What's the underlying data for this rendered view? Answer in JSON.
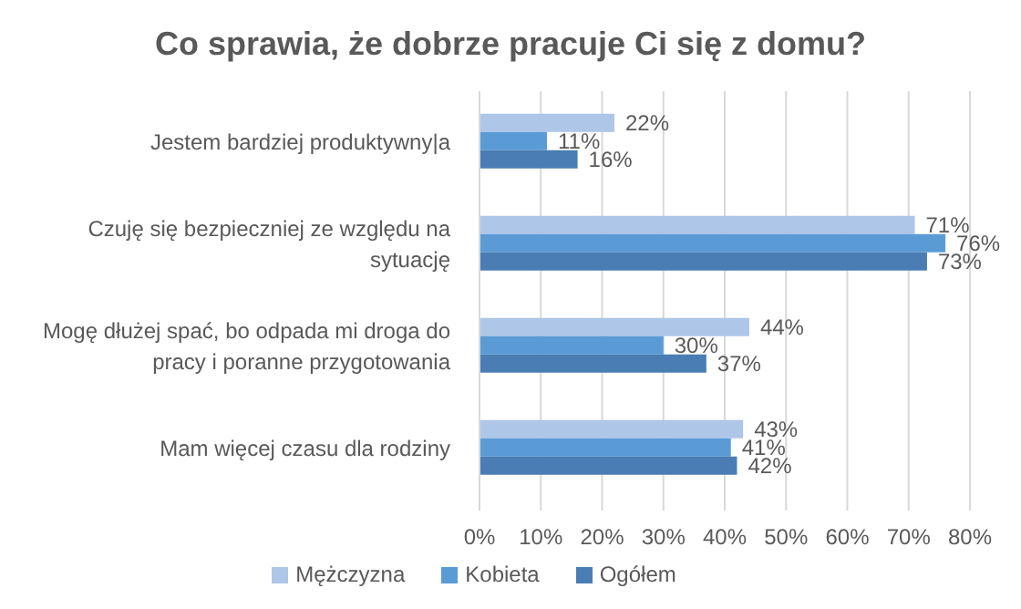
{
  "chart_data": {
    "type": "bar",
    "orientation": "horizontal",
    "title": "Co sprawia, że dobrze pracuje Ci się z domu?",
    "categories": [
      "Jestem bardziej produktywny|a",
      "Czuję się bezpieczniej ze względu na sytuację",
      "Mogę dłużej spać, bo odpada mi droga do pracy i poranne przygotowania",
      "Mam więcej czasu dla rodziny"
    ],
    "series": [
      {
        "name": "Mężczyzna",
        "color": "#aec6e8",
        "values": [
          22,
          71,
          44,
          43
        ],
        "value_labels": [
          "22%",
          "71%",
          "44%",
          "43%"
        ]
      },
      {
        "name": "Kobieta",
        "color": "#5b9bd5",
        "values": [
          11,
          76,
          30,
          41
        ],
        "value_labels": [
          "11%",
          "76%",
          "30%",
          "41%"
        ]
      },
      {
        "name": "Ogółem",
        "color": "#4a7db3",
        "values": [
          16,
          73,
          37,
          42
        ],
        "value_labels": [
          "16%",
          "73%",
          "37%",
          "42%"
        ]
      }
    ],
    "xlim": [
      0,
      80
    ],
    "xticks": [
      {
        "value": 0,
        "label": "0%"
      },
      {
        "value": 10,
        "label": "10%"
      },
      {
        "value": 20,
        "label": "20%"
      },
      {
        "value": 30,
        "label": "30%"
      },
      {
        "value": 40,
        "label": "40%"
      },
      {
        "value": 50,
        "label": "50%"
      },
      {
        "value": 60,
        "label": "60%"
      },
      {
        "value": 70,
        "label": "70%"
      },
      {
        "value": 80,
        "label": "80%"
      }
    ],
    "grid": "x",
    "legend": "bottom"
  }
}
